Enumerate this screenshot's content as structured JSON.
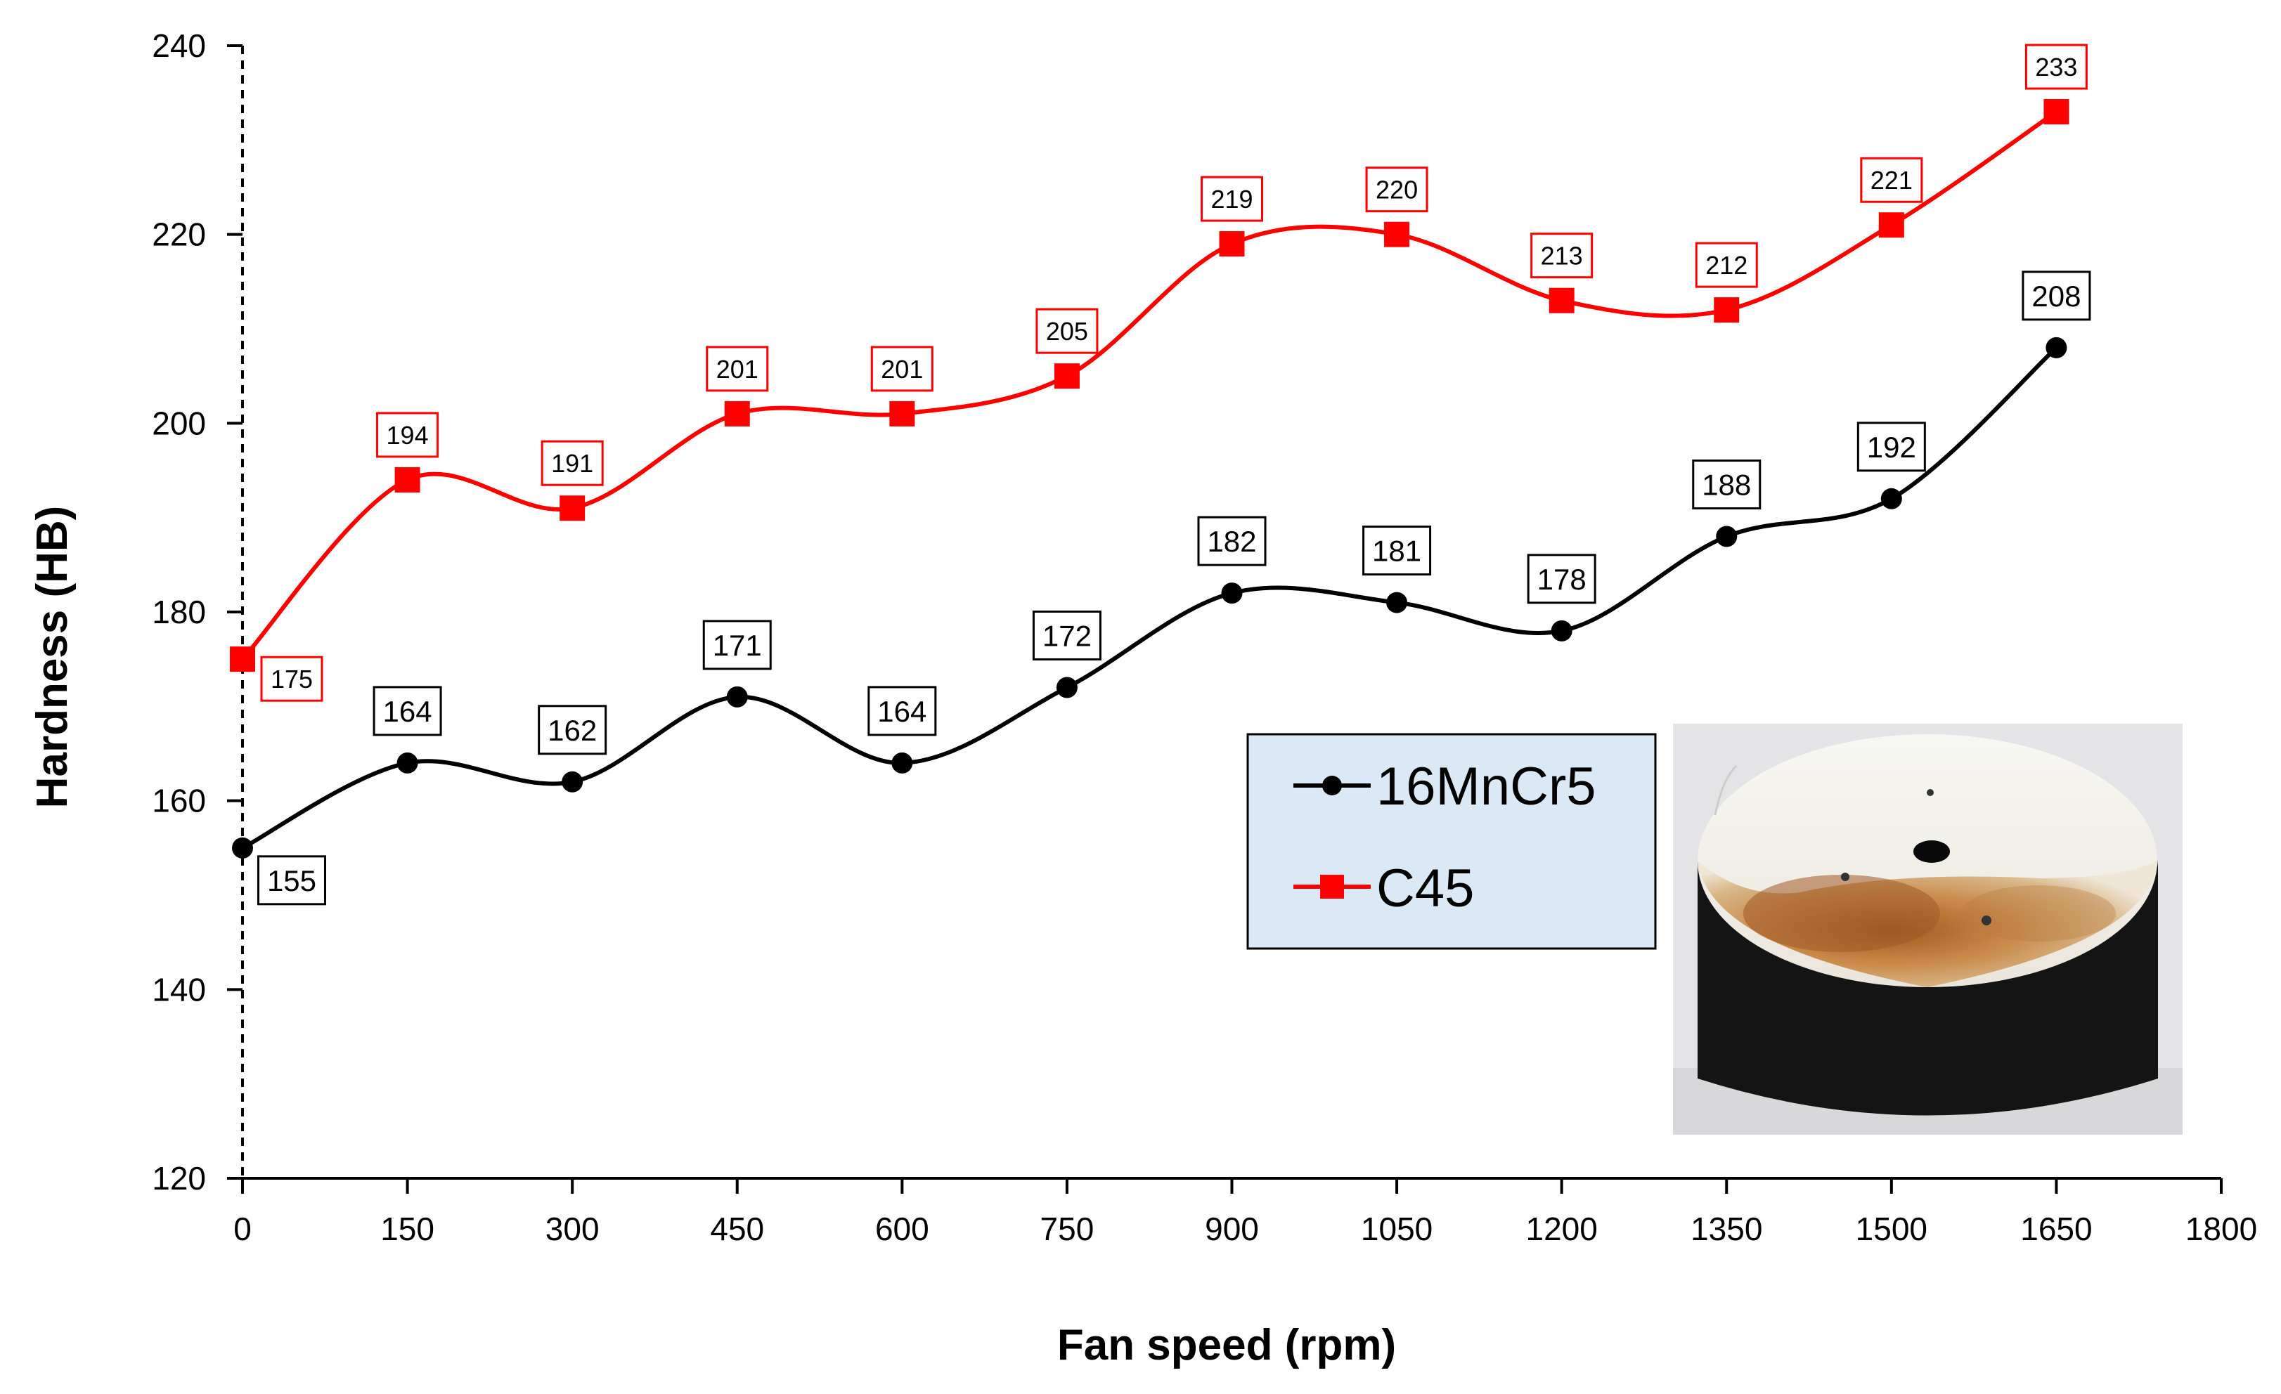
{
  "chart_data": {
    "type": "line",
    "xlabel": "Fan speed (rpm)",
    "ylabel": "Hardness (HB)",
    "xlim": [
      0,
      1800
    ],
    "ylim": [
      120,
      240
    ],
    "xticks": [
      0,
      150,
      300,
      450,
      600,
      750,
      900,
      1050,
      1200,
      1350,
      1500,
      1650,
      1800
    ],
    "yticks": [
      120,
      140,
      160,
      180,
      200,
      220,
      240
    ],
    "x": [
      0,
      150,
      300,
      450,
      600,
      750,
      900,
      1050,
      1200,
      1350,
      1500,
      1650
    ],
    "smooth": true,
    "grid": false,
    "legend_position": "bottom-center",
    "series": [
      {
        "name": "16MnCr5",
        "color": "#000000",
        "marker": "circle",
        "values": [
          155,
          164,
          162,
          171,
          164,
          172,
          182,
          181,
          178,
          188,
          192,
          208
        ],
        "labels": [
          "155",
          "164",
          "162",
          "171",
          "164",
          "172",
          "182",
          "181",
          "178",
          "188",
          "192",
          "208"
        ]
      },
      {
        "name": "C45",
        "color": "#ff0000",
        "marker": "square",
        "values": [
          175,
          194,
          191,
          201,
          201,
          205,
          219,
          220,
          213,
          212,
          221,
          233
        ],
        "labels": [
          "175",
          "194",
          "191",
          "201",
          "201",
          "205",
          "219",
          "220",
          "213",
          "212",
          "221",
          "233"
        ]
      }
    ],
    "inset_image": "photo-of-cylindrical-steel-sample"
  }
}
